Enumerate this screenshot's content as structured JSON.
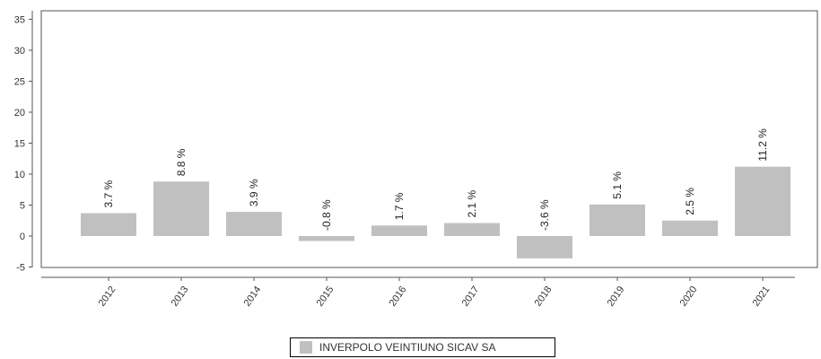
{
  "chart_data": {
    "type": "bar",
    "categories": [
      "2012",
      "2013",
      "2014",
      "2015",
      "2016",
      "2017",
      "2018",
      "2019",
      "2020",
      "2021"
    ],
    "series": [
      {
        "name": "INVERPOLO VEINTIUNO SICAV SA",
        "values": [
          3.7,
          8.8,
          3.9,
          -0.8,
          1.7,
          2.1,
          -3.6,
          5.1,
          2.5,
          11.2
        ],
        "color": "#c0c0c0"
      }
    ],
    "data_labels": [
      "3.7 %",
      "8.8 %",
      "3.9 %",
      "-0.8 %",
      "1.7 %",
      "2.1 %",
      "-3.6 %",
      "5.1 %",
      "2.5 %",
      "11.2 %"
    ],
    "yticks": [
      35,
      30,
      25,
      20,
      15,
      10,
      5,
      0,
      -5
    ],
    "ylim": [
      -5,
      36
    ],
    "title": "",
    "xlabel": "",
    "ylabel": "",
    "legend_position": "bottom-center",
    "grid": false
  },
  "legend": {
    "label": "INVERPOLO VEINTIUNO SICAV SA"
  }
}
